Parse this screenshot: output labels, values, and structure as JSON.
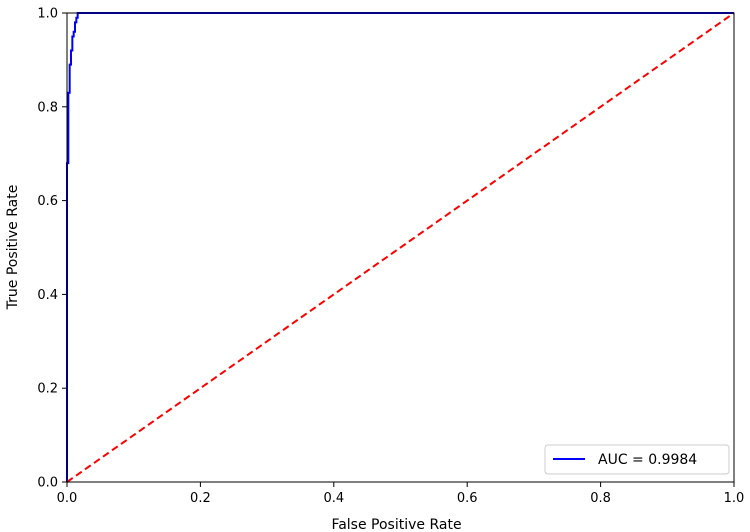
{
  "chart_data": {
    "type": "line",
    "title": "",
    "xlabel": "False Positive Rate",
    "ylabel": "True Positive Rate",
    "xlim": [
      0.0,
      1.0
    ],
    "ylim": [
      0.0,
      1.0
    ],
    "xticks": [
      "0.0",
      "0.2",
      "0.4",
      "0.6",
      "0.8",
      "1.0"
    ],
    "yticks": [
      "0.0",
      "0.2",
      "0.4",
      "0.6",
      "0.8",
      "1.0"
    ],
    "grid": false,
    "legend_position": "lower-right",
    "series": [
      {
        "name": "AUC = 0.9984",
        "color": "#0000ff",
        "style": "solid",
        "x": [
          0.0,
          0.0,
          0.002,
          0.002,
          0.004,
          0.004,
          0.006,
          0.006,
          0.008,
          0.008,
          0.01,
          0.01,
          0.012,
          0.012,
          0.014,
          0.014,
          0.016,
          0.016,
          1.0
        ],
        "y": [
          0.0,
          0.68,
          0.68,
          0.83,
          0.83,
          0.89,
          0.89,
          0.92,
          0.92,
          0.95,
          0.95,
          0.96,
          0.96,
          0.98,
          0.98,
          0.99,
          0.99,
          1.0,
          1.0
        ]
      },
      {
        "color": "#ff0000",
        "style": "dashed",
        "x": [
          0.0,
          1.0
        ],
        "y": [
          0.0,
          1.0
        ]
      }
    ]
  }
}
